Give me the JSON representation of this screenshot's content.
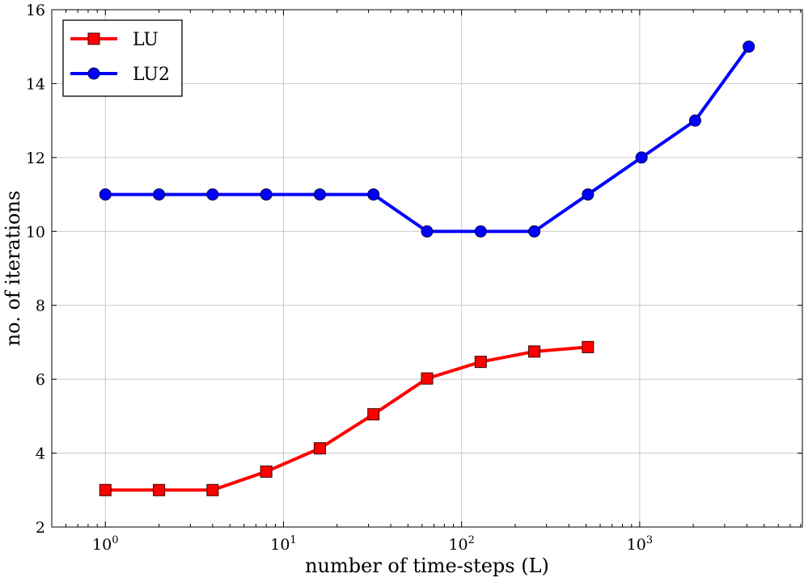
{
  "chart_data": {
    "type": "line",
    "title": "",
    "xlabel": "number of time-steps (L)",
    "ylabel": "no. of iterations",
    "xscale": "log",
    "xlim": [
      0.5,
      8192
    ],
    "ylim": [
      2,
      16
    ],
    "grid": true,
    "legend_position": "top-left",
    "x_ticks": [
      {
        "value": 1,
        "base": "10",
        "exp": "0"
      },
      {
        "value": 10,
        "base": "10",
        "exp": "1"
      },
      {
        "value": 100,
        "base": "10",
        "exp": "2"
      },
      {
        "value": 1000,
        "base": "10",
        "exp": "3"
      }
    ],
    "y_ticks": [
      2,
      4,
      6,
      8,
      10,
      12,
      14,
      16
    ],
    "series": [
      {
        "name": "LU",
        "color": "#ff0000",
        "marker": "square",
        "x": [
          1,
          2,
          4,
          8,
          16,
          32,
          64,
          128,
          256,
          512
        ],
        "y": [
          3,
          3,
          3,
          3.5,
          4.13,
          5.05,
          6.02,
          6.47,
          6.75,
          6.87
        ]
      },
      {
        "name": "LU2",
        "color": "#0000ff",
        "marker": "circle",
        "x": [
          1,
          2,
          4,
          8,
          16,
          32,
          64,
          128,
          256,
          512,
          1024,
          2048,
          4096
        ],
        "y": [
          11,
          11,
          11,
          11,
          11,
          11,
          10,
          10,
          10,
          11,
          12,
          13,
          15
        ]
      }
    ]
  }
}
